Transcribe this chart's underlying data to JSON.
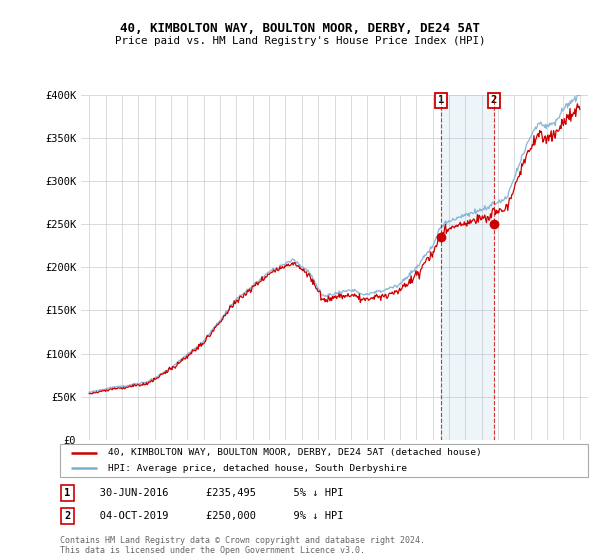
{
  "title1": "40, KIMBOLTON WAY, BOULTON MOOR, DERBY, DE24 5AT",
  "title2": "Price paid vs. HM Land Registry's House Price Index (HPI)",
  "ylabel_ticks": [
    "£0",
    "£50K",
    "£100K",
    "£150K",
    "£200K",
    "£250K",
    "£300K",
    "£350K",
    "£400K"
  ],
  "ytick_vals": [
    0,
    50000,
    100000,
    150000,
    200000,
    250000,
    300000,
    350000,
    400000
  ],
  "ylim": [
    0,
    400000
  ],
  "xlim_start": 1994.5,
  "xlim_end": 2025.5,
  "sale1_x": 2016.5,
  "sale1_y": 235495,
  "sale2_x": 2019.75,
  "sale2_y": 250000,
  "legend_line1": "40, KIMBOLTON WAY, BOULTON MOOR, DERBY, DE24 5AT (detached house)",
  "legend_line2": "HPI: Average price, detached house, South Derbyshire",
  "table_row1": [
    "1",
    "30-JUN-2016",
    "£235,495",
    "5% ↓ HPI"
  ],
  "table_row2": [
    "2",
    "04-OCT-2019",
    "£250,000",
    "9% ↓ HPI"
  ],
  "footnote1": "Contains HM Land Registry data © Crown copyright and database right 2024.",
  "footnote2": "This data is licensed under the Open Government Licence v3.0.",
  "red_color": "#cc0000",
  "blue_color": "#7aafd4",
  "grid_color": "#cccccc"
}
